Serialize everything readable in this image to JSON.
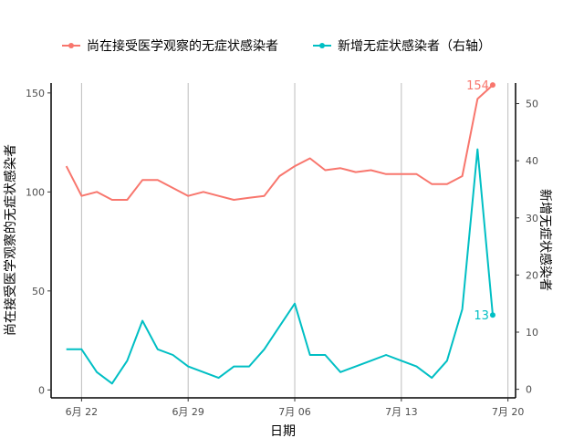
{
  "chart_data": {
    "type": "line",
    "xlabel": "日期",
    "ylabel_left": "尚在接受医学观察的无症状感染者",
    "ylabel_right": "新增无症状感染者",
    "x_ticks": [
      "6月 22",
      "6月 29",
      "7月 06",
      "7月 13",
      "7月 20"
    ],
    "y_ticks_left": [
      "0",
      "50",
      "100",
      "150"
    ],
    "y_ticks_right": [
      "0",
      "10",
      "20",
      "30",
      "40",
      "50"
    ],
    "ylim_left": [
      -4,
      155
    ],
    "ylim_right": [
      -1.5,
      53.6
    ],
    "grid": "vertical major lines only",
    "legend_position": "top",
    "x": [
      "2022-06-21",
      "2022-06-22",
      "2022-06-23",
      "2022-06-24",
      "2022-06-25",
      "2022-06-26",
      "2022-06-27",
      "2022-06-28",
      "2022-06-29",
      "2022-06-30",
      "2022-07-01",
      "2022-07-02",
      "2022-07-03",
      "2022-07-04",
      "2022-07-05",
      "2022-07-06",
      "2022-07-07",
      "2022-07-08",
      "2022-07-09",
      "2022-07-10",
      "2022-07-11",
      "2022-07-12",
      "2022-07-13",
      "2022-07-14",
      "2022-07-15",
      "2022-07-16",
      "2022-07-17",
      "2022-07-18",
      "2022-07-19"
    ],
    "series": [
      {
        "name": "尚在接受医学观察的无症状感染者",
        "axis": "left",
        "color": "#F8766D",
        "values": [
          113,
          98,
          100,
          96,
          96,
          106,
          106,
          102,
          98,
          100,
          98,
          96,
          97,
          98,
          108,
          113,
          117,
          111,
          112,
          110,
          111,
          109,
          109,
          109,
          104,
          104,
          108,
          147,
          154
        ],
        "end_label": "154"
      },
      {
        "name": "新增无症状感染者（右轴）",
        "axis": "right",
        "color": "#00BFC4",
        "values": [
          7,
          7,
          3,
          1,
          5,
          12,
          7,
          6,
          4,
          3,
          2,
          4,
          4,
          7,
          11,
          15,
          6,
          6,
          3,
          4,
          5,
          6,
          5,
          4,
          2,
          5,
          14,
          42,
          13
        ],
        "end_label": "13"
      }
    ]
  }
}
